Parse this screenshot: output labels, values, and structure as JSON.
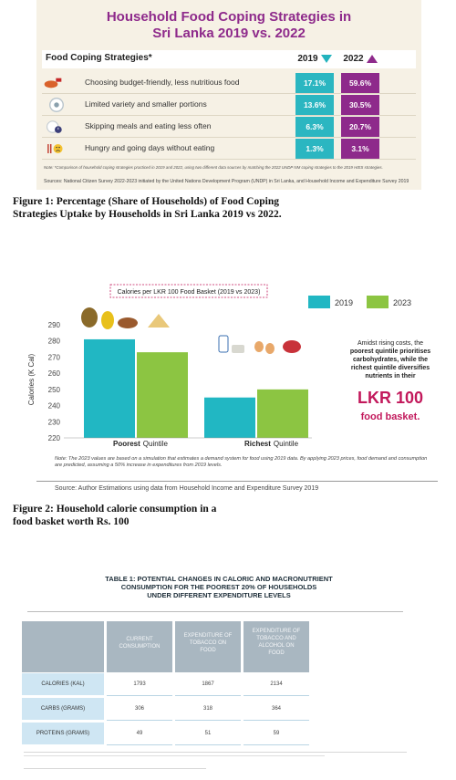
{
  "panel1": {
    "title": "Household Food Coping Strategies in Sri Lanka 2019 vs. 2022",
    "title_line1": "Household Food Coping Strategies in",
    "title_line2": "Sri Lanka 2019 vs. 2022",
    "header_label": "Food Coping Strategies*",
    "year1": "2019",
    "year2": "2022",
    "rows": [
      {
        "label": "Choosing budget-friendly, less nutritious food",
        "v2019": "17.1%",
        "v2022": "59.6%",
        "icon": "cheap-food-icon"
      },
      {
        "label": "Limited variety and smaller portions",
        "v2019": "13.6%",
        "v2022": "30.5%",
        "icon": "small-portion-icon"
      },
      {
        "label": "Skipping meals and eating less often",
        "v2019": "6.3%",
        "v2022": "20.7%",
        "icon": "clock-plate-icon"
      },
      {
        "label": "Hungry and going days without eating",
        "v2019": "1.3%",
        "v2022": "3.1%",
        "icon": "sad-face-cutlery-icon"
      }
    ],
    "note": "Note: *Comparison of household coping strategies practiced in 2019 and 2022, using two different data sources by matching the 2022 UNDP NM coping strategies to the 2019 HIES strategies.",
    "source": "Sources: National Citizen Survey 2022-2023 initiated by the United Nations Development Program (UNDP) in Sri Lanka, and Household Income and Expenditure Survey 2019",
    "colors": {
      "y2019": "#2bb6c1",
      "y2022": "#8e2a8b",
      "title": "#8e2a8b",
      "bg": "#f6f1e5"
    }
  },
  "caption1_line1": "Figure 1: Percentage (Share of Households) of Food Coping",
  "caption1_line2": "Strategies Uptake by Households in Sri Lanka 2019 vs 2022.",
  "panel2": {
    "legend_2019": "2019",
    "legend_2023": "2023",
    "annotation_line1": "Amidst rising costs, the",
    "annotation_line2": "poorest quintile prioritises",
    "annotation_line3": "carbohydrates, while the",
    "annotation_line4": "richest quintile diversifies",
    "annotation_line5": "nutrients in their",
    "big_amount": "LKR 100",
    "big_sub": "food basket.",
    "note": "Note: The 2023 values are based on a simulation that estimates a demand system for food using 2019 data. By applying 2023 prices, food demand and consumption are predicted, assuming a 50% increase in expenditures from 2019 levels.",
    "source": "Source: Author Estimations using data from Household Income and Expenditure Survey 2019",
    "colors": {
      "y2019": "#21b7c3",
      "y2023": "#8cc542"
    }
  },
  "chart_data": {
    "type": "bar",
    "title": "Calories per LKR 100 Food Basket (2019 vs 2023)",
    "ylabel": "Calories (K Cal)",
    "categories": [
      "Poorest Quintile",
      "Richest Quintile"
    ],
    "category_bold": [
      "Poorest",
      "Richest"
    ],
    "category_rest": [
      "Quintile",
      "Quintile"
    ],
    "series": [
      {
        "name": "2019",
        "values": [
          281,
          245
        ]
      },
      {
        "name": "2023",
        "values": [
          273,
          250
        ]
      }
    ],
    "ylim": [
      220,
      290
    ],
    "yticks": [
      "220",
      "230",
      "240",
      "250",
      "260",
      "270",
      "280",
      "290"
    ],
    "grid": false,
    "legend": "top-right"
  },
  "caption2_line1": "Figure 2: Household calorie consumption in a",
  "caption2_line2": "food basket worth Rs. 100",
  "table": {
    "title_line1": "TABLE 1: POTENTIAL CHANGES IN CALORIC AND MACRONUTRIENT",
    "title_line2": "CONSUMPTION FOR THE POOREST 20% OF HOUSEHOLDS",
    "title_line3": "UNDER DIFFERENT EXPENDITURE LEVELS",
    "headers": [
      "",
      "CURRENT CONSUMPTION",
      "EXPENDITURE OF TOBACCO ON FOOD",
      "EXPENDITURE OF TOBACCO AND ALCOHOL ON FOOD"
    ],
    "header_lines": [
      [
        "CURRENT",
        "CONSUMPTION"
      ],
      [
        "EXPENDITURE OF",
        "TOBACCO ON",
        "FOOD"
      ],
      [
        "EXPENDITURE OF",
        "TOBACCO AND",
        "ALCOHOL ON",
        "FOOD"
      ]
    ],
    "rows": [
      {
        "label": "CALORIES (KAL)",
        "values": [
          "1793",
          "1867",
          "2134"
        ]
      },
      {
        "label": "CARBS (GRAMS)",
        "values": [
          "306",
          "318",
          "364"
        ]
      },
      {
        "label": "PROTEINS (GRAMS)",
        "values": [
          "49",
          "51",
          "59"
        ]
      }
    ],
    "colors": {
      "header": "#a9b7c1",
      "label": "#cfe6f3",
      "line": "#b9d5e4"
    }
  }
}
